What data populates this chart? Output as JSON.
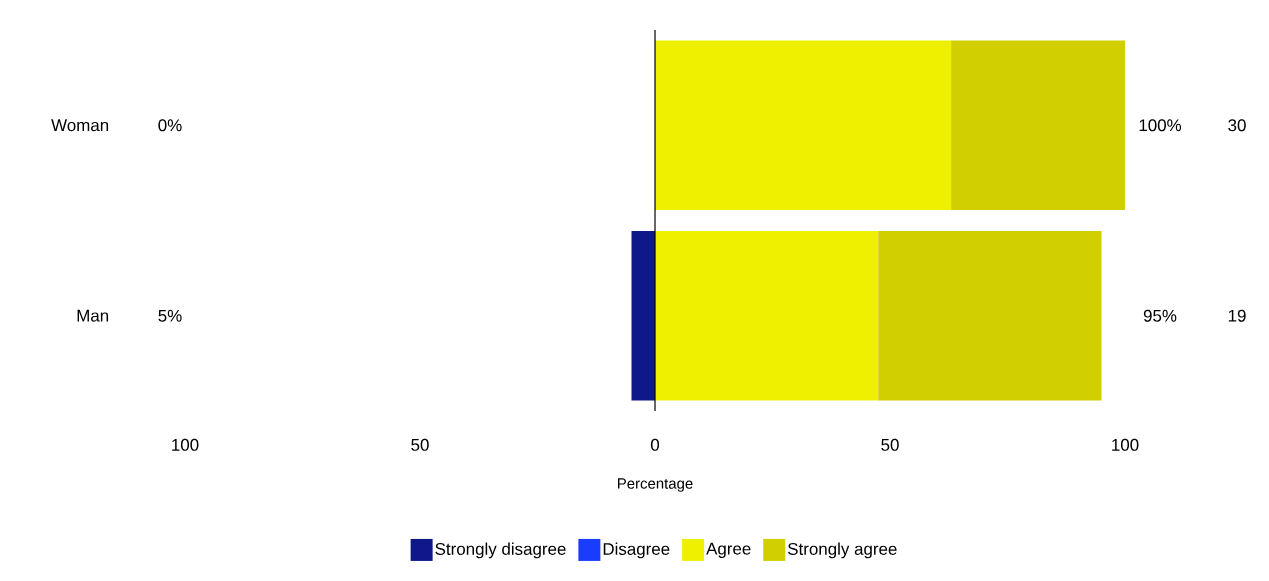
{
  "chart_data": {
    "type": "bar",
    "orientation": "horizontal",
    "stacked": true,
    "xlabel": "Percentage",
    "categories": [
      "Woman",
      "Man"
    ],
    "series": [
      {
        "name": "Strongly disagree",
        "color": "#0e1888",
        "values": [
          0,
          -5
        ]
      },
      {
        "name": "Disagree",
        "color": "#1a3cff",
        "values": [
          0,
          0
        ]
      },
      {
        "name": "Agree",
        "color": "#eef000",
        "values": [
          63,
          47.5
        ]
      },
      {
        "name": "Strongly agree",
        "color": "#d2cf00",
        "values": [
          37,
          47.5
        ]
      }
    ],
    "xlim": [
      -100,
      100
    ],
    "xticks": [
      {
        "value": -100,
        "label": "100"
      },
      {
        "value": -50,
        "label": "50"
      },
      0,
      50,
      100
    ],
    "ref_lines": [
      {
        "axis": "x",
        "value": 0,
        "color": "#000000"
      }
    ],
    "annotations": [
      "0%",
      "5%",
      "100%",
      "95%",
      "30",
      "19"
    ],
    "grid": false,
    "legend": "bottom"
  }
}
